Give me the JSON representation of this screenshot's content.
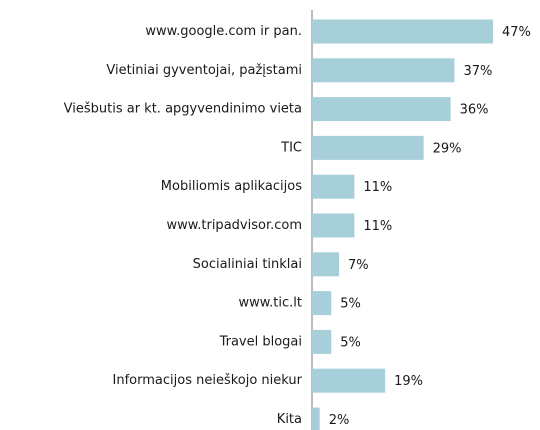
{
  "chart_data": {
    "type": "bar",
    "orientation": "horizontal",
    "categories": [
      "www.google.com ir pan.",
      "Vietiniai gyventojai, pažįstami",
      "Viešbutis ar kt. apgyvendinimo vieta",
      "TIC",
      "Mobiliomis aplikacijos",
      "www.tripadvisor.com",
      "Socialiniai tinklai",
      "www.tic.lt",
      "Travel blogai",
      "Informacijos neieškojo niekur",
      "Kita"
    ],
    "values": [
      47,
      37,
      36,
      29,
      11,
      11,
      7,
      5,
      5,
      19,
      2
    ],
    "value_labels": [
      "47%",
      "37%",
      "36%",
      "29%",
      "11%",
      "11%",
      "7%",
      "5%",
      "5%",
      "19%",
      "2%"
    ],
    "color": "#a6cfd9",
    "xlim": [
      0,
      50
    ]
  }
}
